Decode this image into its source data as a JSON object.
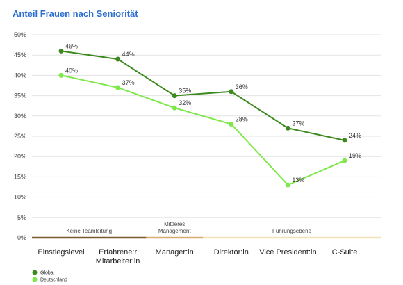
{
  "chart_data": {
    "type": "line",
    "title": "Anteil Frauen nach Seniorität",
    "categories": [
      [
        "Einstiegslevel"
      ],
      [
        "Erfahrene:r",
        "Mitarbeiter:in"
      ],
      [
        "Manager:in"
      ],
      [
        "Direktor:in"
      ],
      [
        "Vice President:in"
      ],
      [
        "C-Suite"
      ]
    ],
    "yticks": [
      "0%",
      "5%",
      "10%",
      "15%",
      "20%",
      "25%",
      "30%",
      "35%",
      "40%",
      "45%",
      "50%"
    ],
    "ylim": [
      0,
      50
    ],
    "grid": true,
    "series": [
      {
        "name": "Global",
        "color": "#3c8a1e",
        "values": [
          46,
          44,
          35,
          36,
          27,
          24
        ],
        "labels": [
          "46%",
          "44%",
          "35%",
          "36%",
          "27%",
          "24%"
        ]
      },
      {
        "name": "Deutschland",
        "color": "#7ee84a",
        "values": [
          40,
          37,
          32,
          28,
          13,
          19
        ],
        "labels": [
          "40%",
          "37%",
          "32%",
          "28%",
          "13%",
          "19%"
        ]
      }
    ],
    "bands": [
      {
        "label": [
          "Keine Teamleitung"
        ],
        "from": 0,
        "to": 1,
        "color": "#7b5a2e"
      },
      {
        "label": [
          "Mittleres",
          "Management"
        ],
        "from": 2,
        "to": 2,
        "color": "#d7ae72"
      },
      {
        "label": [
          "Führungsebene"
        ],
        "from": 3,
        "to": 5,
        "color": "#f2e2bb"
      }
    ],
    "legend_position": "bottom-left"
  }
}
